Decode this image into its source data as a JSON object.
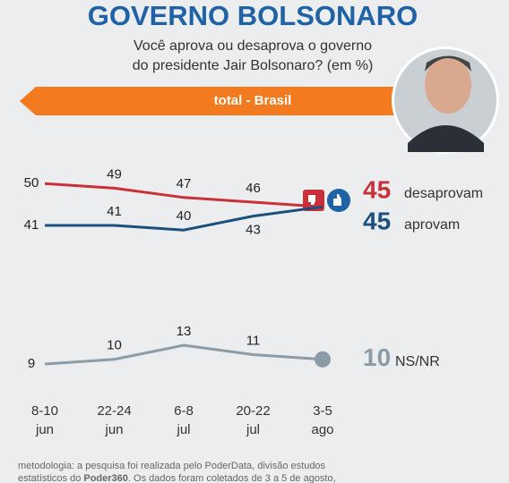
{
  "chart_data": {
    "type": "line",
    "title": "GOVERNO BOLSONARO",
    "subtitle": [
      "Você aprova ou desaprova o governo",
      "do presidente Jair Bolsonaro?  (em %)"
    ],
    "banner": "total - Brasil",
    "categories": [
      "8-10 jun",
      "22-24 jun",
      "6-8 jul",
      "20-22 jul",
      "3-5 ago"
    ],
    "ylim": [
      36,
      56
    ],
    "y2lim": [
      5,
      17
    ],
    "series": [
      {
        "name": "desaprovam",
        "color": "#c8303a",
        "values": [
          50,
          49,
          47,
          46,
          45
        ]
      },
      {
        "name": "aprovam",
        "color": "#1b4f7e",
        "values": [
          41,
          41,
          40,
          43,
          45
        ]
      },
      {
        "name": "NS/NR",
        "color": "#8c9ba5",
        "values": [
          9,
          10,
          13,
          11,
          10
        ],
        "axis": "y2"
      }
    ],
    "footnote": [
      "metodologia: a pesquisa foi realizada pelo PoderData, divisão estudos",
      "estatísticos do ",
      "Poder360",
      ". Os dados foram coletados de 3 a 5 de agosto,"
    ]
  }
}
